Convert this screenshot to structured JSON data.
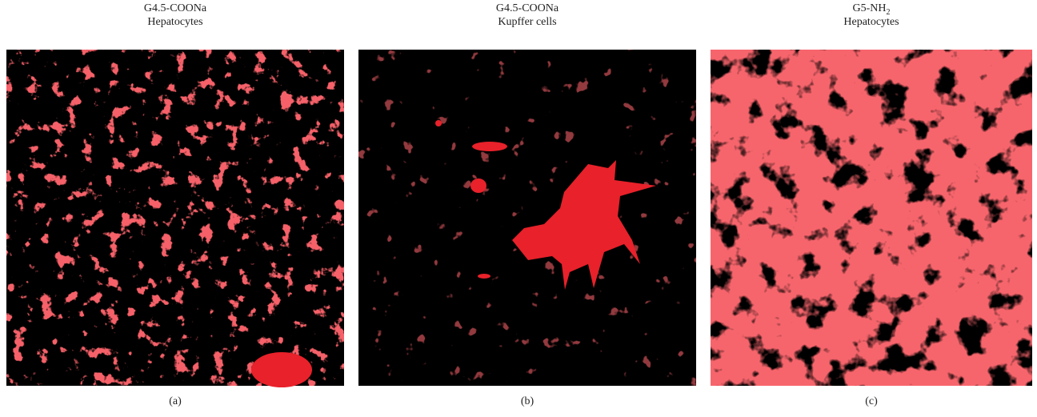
{
  "panels": [
    {
      "title": [
        "G4.5-COONa",
        "Hepatocytes"
      ],
      "caption": "(a)"
    },
    {
      "title": [
        "G4.5-COONa",
        "Kupffer cells"
      ],
      "caption": "(b)"
    },
    {
      "title_main": "G5-NH",
      "title_sub": "2",
      "title_line2": "Hepatocytes",
      "caption": "(c)"
    }
  ]
}
